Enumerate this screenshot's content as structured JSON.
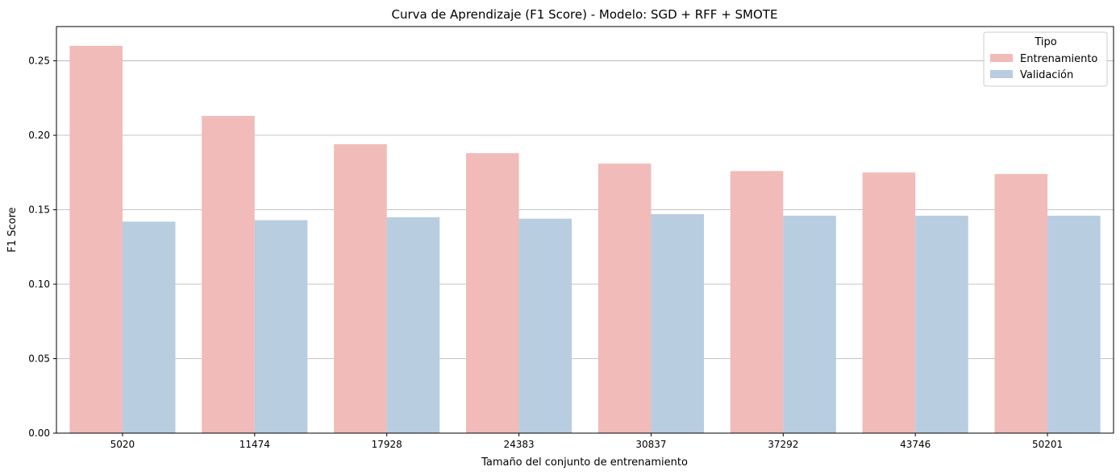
{
  "chart_data": {
    "type": "bar",
    "title": "Curva de Aprendizaje (F1 Score) - Modelo: SGD + RFF + SMOTE",
    "xlabel": "Tamaño del conjunto de entrenamiento",
    "ylabel": "F1 Score",
    "categories": [
      "5020",
      "11474",
      "17928",
      "24383",
      "30837",
      "37292",
      "43746",
      "50201"
    ],
    "series": [
      {
        "name": "Entrenamiento",
        "color": "#f0bbb8",
        "values": [
          0.26,
          0.213,
          0.194,
          0.188,
          0.181,
          0.176,
          0.175,
          0.174
        ]
      },
      {
        "name": "Validación",
        "color": "#b8cde0",
        "values": [
          0.142,
          0.143,
          0.145,
          0.144,
          0.147,
          0.146,
          0.146,
          0.146
        ]
      }
    ],
    "ylim": [
      0,
      0.273
    ],
    "yticks": [
      "0.00",
      "0.05",
      "0.10",
      "0.15",
      "0.20",
      "0.25"
    ],
    "grid": "horizontal",
    "legend": {
      "title": "Tipo",
      "position": "top-right"
    }
  }
}
